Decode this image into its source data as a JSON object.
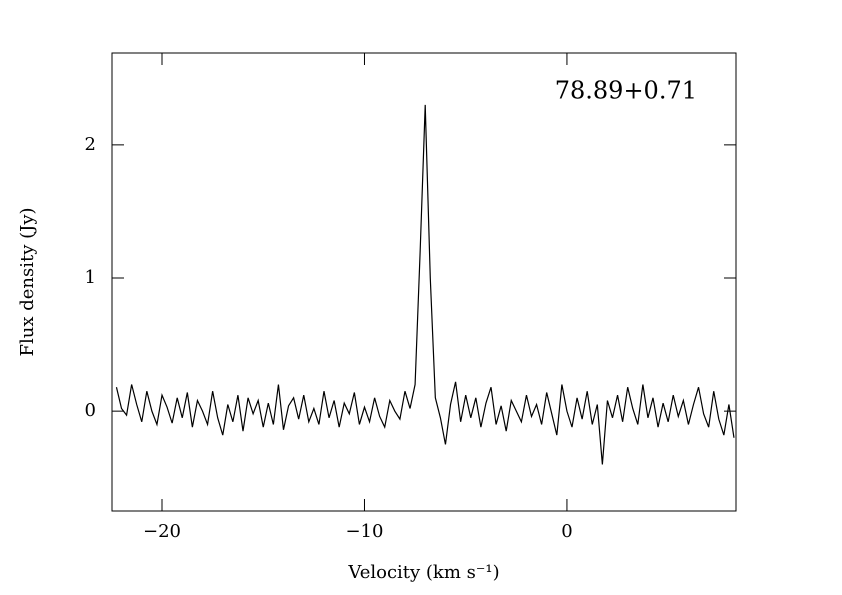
{
  "chart_data": {
    "type": "line",
    "annotation": "78.89+0.71",
    "xlabel": "Velocity (km s⁻¹)",
    "ylabel": "Flux density (Jy)",
    "xlim": [
      -22.47,
      8.35
    ],
    "ylim": [
      -0.75,
      2.69
    ],
    "xticks": [
      {
        "value": -20,
        "label": "−20"
      },
      {
        "value": -10,
        "label": "−10"
      },
      0
    ],
    "yticks": [
      0,
      1,
      2
    ],
    "x": [
      -22.25,
      -22,
      -21.75,
      -21.5,
      -21.25,
      -21,
      -20.75,
      -20.5,
      -20.25,
      -20,
      -19.75,
      -19.5,
      -19.25,
      -19,
      -18.75,
      -18.5,
      -18.25,
      -18,
      -17.75,
      -17.5,
      -17.25,
      -17,
      -16.75,
      -16.5,
      -16.25,
      -16,
      -15.75,
      -15.5,
      -15.25,
      -15,
      -14.75,
      -14.5,
      -14.25,
      -14,
      -13.75,
      -13.5,
      -13.25,
      -13,
      -12.75,
      -12.5,
      -12.25,
      -12,
      -11.75,
      -11.5,
      -11.25,
      -11,
      -10.75,
      -10.5,
      -10.25,
      -10,
      -9.75,
      -9.5,
      -9.25,
      -9,
      -8.75,
      -8.5,
      -8.25,
      -8,
      -7.75,
      -7.5,
      -7.25,
      -7,
      -6.75,
      -6.5,
      -6.25,
      -6,
      -5.75,
      -5.5,
      -5.25,
      -5,
      -4.75,
      -4.5,
      -4.25,
      -4,
      -3.75,
      -3.5,
      -3.25,
      -3,
      -2.75,
      -2.5,
      -2.25,
      -2,
      -1.75,
      -1.5,
      -1.25,
      -1,
      -0.75,
      -0.5,
      -0.25,
      0,
      0.25,
      0.5,
      0.75,
      1,
      1.25,
      1.5,
      1.75,
      2,
      2.25,
      2.5,
      2.75,
      3,
      3.25,
      3.5,
      3.75,
      4,
      4.25,
      4.5,
      4.75,
      5,
      5.25,
      5.5,
      5.75,
      6,
      6.25,
      6.5,
      6.75,
      7,
      7.25,
      7.5,
      7.75,
      8,
      8.25
    ],
    "series": [
      {
        "color": "#000000",
        "values": [
          0.18,
          0.02,
          -0.03,
          0.2,
          0.05,
          -0.08,
          0.15,
          0.0,
          -0.1,
          0.12,
          0.03,
          -0.09,
          0.1,
          -0.05,
          0.14,
          -0.12,
          0.08,
          0.0,
          -0.1,
          0.15,
          -0.05,
          -0.18,
          0.05,
          -0.08,
          0.12,
          -0.15,
          0.1,
          -0.02,
          0.08,
          -0.12,
          0.06,
          -0.1,
          0.2,
          -0.14,
          0.04,
          0.1,
          -0.06,
          0.12,
          -0.08,
          0.02,
          -0.1,
          0.15,
          -0.05,
          0.08,
          -0.12,
          0.06,
          -0.02,
          0.14,
          -0.1,
          0.03,
          -0.08,
          0.1,
          -0.04,
          -0.12,
          0.08,
          0.0,
          -0.06,
          0.15,
          0.02,
          0.2,
          1.2,
          2.3,
          1.0,
          0.1,
          -0.05,
          -0.25,
          0.05,
          0.22,
          -0.08,
          0.12,
          -0.05,
          0.1,
          -0.12,
          0.06,
          0.18,
          -0.1,
          0.04,
          -0.15,
          0.08,
          0.0,
          -0.08,
          0.12,
          -0.04,
          0.05,
          -0.1,
          0.14,
          -0.02,
          -0.18,
          0.2,
          0.0,
          -0.12,
          0.1,
          -0.06,
          0.15,
          -0.1,
          0.05,
          -0.4,
          0.08,
          -0.05,
          0.12,
          -0.08,
          0.18,
          0.02,
          -0.1,
          0.2,
          -0.05,
          0.1,
          -0.12,
          0.06,
          -0.08,
          0.12,
          -0.04,
          0.08,
          -0.1,
          0.05,
          0.18,
          -0.02,
          -0.12,
          0.15,
          -0.06,
          -0.18,
          0.05,
          -0.2
        ]
      }
    ]
  }
}
